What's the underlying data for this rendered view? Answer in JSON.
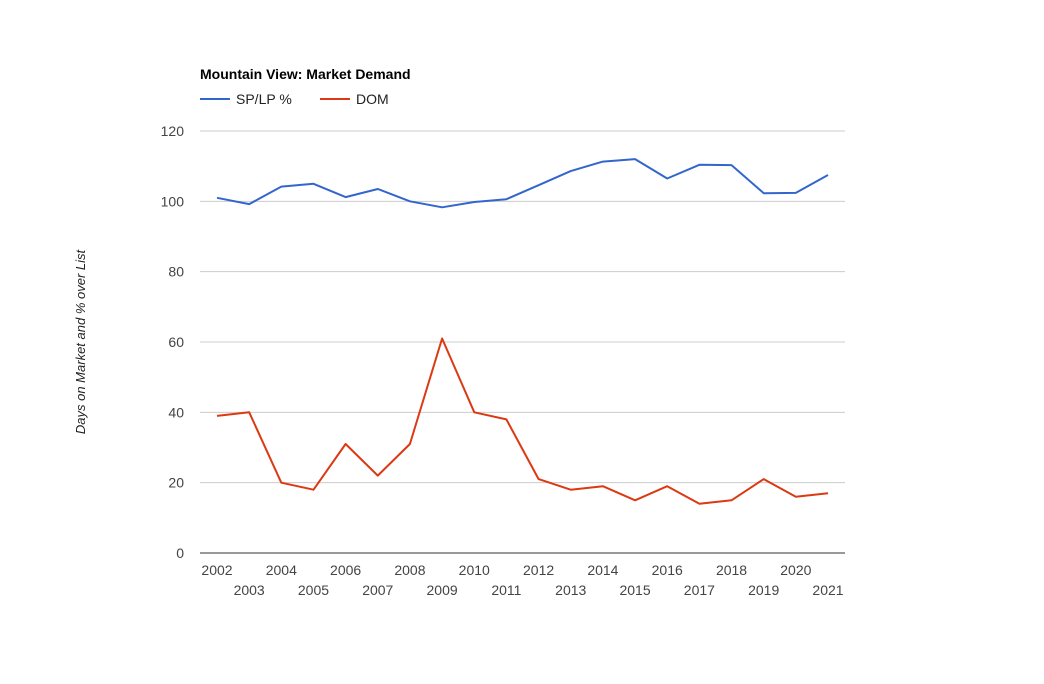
{
  "chart_data": {
    "type": "line",
    "title": "Mountain View:  Market Demand",
    "ylabel": "Days on Market and % over List",
    "xlabel": "",
    "ylim": [
      0,
      120
    ],
    "yticks": [
      "0",
      "20",
      "40",
      "60",
      "80",
      "100",
      "120"
    ],
    "grid": true,
    "legend_position": "top-left",
    "categories": [
      "2002",
      "2003",
      "2004",
      "2005",
      "2006",
      "2007",
      "2008",
      "2009",
      "2010",
      "2011",
      "2012",
      "2013",
      "2014",
      "2015",
      "2016",
      "2017",
      "2018",
      "2019",
      "2020",
      "2021"
    ],
    "series": [
      {
        "name": "SP/LP %",
        "color": "#3366cc",
        "values": [
          101,
          99.2,
          104.2,
          105,
          101.2,
          103.5,
          100,
          98.3,
          99.8,
          100.6,
          104.6,
          108.6,
          111.3,
          112,
          106.5,
          110.4,
          110.3,
          102.3,
          102.4,
          107.5
        ]
      },
      {
        "name": "DOM",
        "color": "#dc3912",
        "values": [
          39,
          40,
          20,
          18,
          31,
          22,
          31,
          61,
          40,
          38,
          21,
          18,
          19,
          15,
          19,
          14,
          15,
          21,
          16,
          17
        ]
      }
    ]
  }
}
